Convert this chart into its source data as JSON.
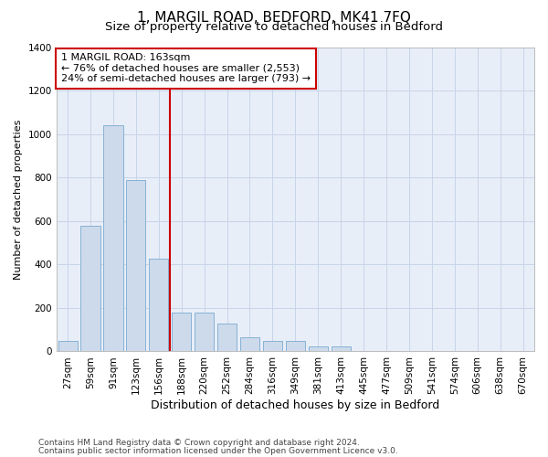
{
  "title": "1, MARGIL ROAD, BEDFORD, MK41 7FQ",
  "subtitle": "Size of property relative to detached houses in Bedford",
  "xlabel": "Distribution of detached houses by size in Bedford",
  "ylabel": "Number of detached properties",
  "categories": [
    "27sqm",
    "59sqm",
    "91sqm",
    "123sqm",
    "156sqm",
    "188sqm",
    "220sqm",
    "252sqm",
    "284sqm",
    "316sqm",
    "349sqm",
    "381sqm",
    "413sqm",
    "445sqm",
    "477sqm",
    "509sqm",
    "541sqm",
    "574sqm",
    "606sqm",
    "638sqm",
    "670sqm"
  ],
  "values": [
    48,
    578,
    1042,
    790,
    428,
    178,
    178,
    128,
    65,
    48,
    48,
    25,
    22,
    0,
    0,
    0,
    0,
    0,
    0,
    0,
    0
  ],
  "bar_color": "#ccdaeb",
  "bar_edgecolor": "#7aaad0",
  "highlight_bar_idx": 4,
  "highlight_color": "#cc0000",
  "annotation_text": "1 MARGIL ROAD: 163sqm\n← 76% of detached houses are smaller (2,553)\n24% of semi-detached houses are larger (793) →",
  "annotation_box_facecolor": "#ffffff",
  "annotation_box_edgecolor": "#cc0000",
  "ylim": [
    0,
    1400
  ],
  "yticks": [
    0,
    200,
    400,
    600,
    800,
    1000,
    1200,
    1400
  ],
  "grid_color": "#c8d4e8",
  "background_color": "#e8eef8",
  "footer_line1": "Contains HM Land Registry data © Crown copyright and database right 2024.",
  "footer_line2": "Contains public sector information licensed under the Open Government Licence v3.0.",
  "title_fontsize": 11,
  "subtitle_fontsize": 9.5,
  "xlabel_fontsize": 9,
  "ylabel_fontsize": 8,
  "tick_fontsize": 7.5,
  "annotation_fontsize": 8,
  "footer_fontsize": 6.5
}
